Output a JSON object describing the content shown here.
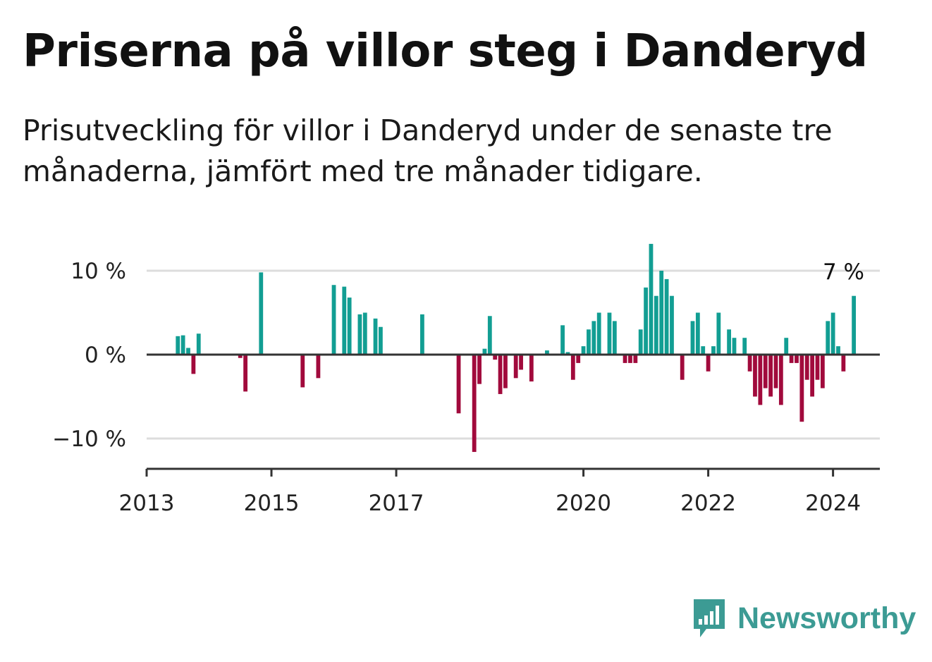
{
  "title": "Priserna på villor steg i Danderyd",
  "subtitle": "Prisutveckling för villor i Danderyd under de senaste tre månaderna, jämfört med tre månader tidigare.",
  "brand": {
    "name": "Newsworthy",
    "icon": "bar-chart-speech-bubble-icon"
  },
  "colors": {
    "positive": "#129e93",
    "negative": "#a10a3c",
    "grid": "#dddddd",
    "axis": "#333333",
    "brand": "#3c9b94"
  },
  "chart_data": {
    "type": "bar",
    "x_unit": "month",
    "ylim": [
      -14,
      13
    ],
    "yticks": [
      {
        "value": 10,
        "label": "10 %"
      },
      {
        "value": 0,
        "label": "0 %"
      },
      {
        "value": -10,
        "label": "−10 %"
      }
    ],
    "xticks": [
      "2013",
      "2015",
      "2017",
      "2020",
      "2022",
      "2024"
    ],
    "xlim": [
      "2013-01",
      "2024-10"
    ],
    "grid": true,
    "annotation": {
      "date": "2024-03",
      "text": "7 %"
    },
    "series": [
      {
        "points": [
          [
            "2013-07",
            2.2
          ],
          [
            "2013-08",
            2.3
          ],
          [
            "2013-09",
            0.8
          ],
          [
            "2013-10",
            -2.3
          ],
          [
            "2013-11",
            2.5
          ],
          [
            "2014-07",
            -0.4
          ],
          [
            "2014-08",
            -4.4
          ],
          [
            "2014-11",
            9.8
          ],
          [
            "2015-07",
            -3.9
          ],
          [
            "2015-10",
            -2.8
          ],
          [
            "2016-01",
            8.3
          ],
          [
            "2016-03",
            8.1
          ],
          [
            "2016-04",
            6.8
          ],
          [
            "2016-06",
            4.8
          ],
          [
            "2016-07",
            5.0
          ],
          [
            "2016-09",
            4.3
          ],
          [
            "2016-10",
            3.3
          ],
          [
            "2017-06",
            4.8
          ],
          [
            "2018-01",
            -7.0
          ],
          [
            "2018-04",
            -11.6
          ],
          [
            "2018-05",
            -3.5
          ],
          [
            "2018-06",
            0.7
          ],
          [
            "2018-07",
            4.6
          ],
          [
            "2018-08",
            -0.6
          ],
          [
            "2018-09",
            -4.7
          ],
          [
            "2018-10",
            -4.0
          ],
          [
            "2018-12",
            -2.8
          ],
          [
            "2019-01",
            -1.8
          ],
          [
            "2019-03",
            -3.2
          ],
          [
            "2019-06",
            0.5
          ],
          [
            "2019-09",
            3.5
          ],
          [
            "2019-10",
            0.3
          ],
          [
            "2019-11",
            -3.0
          ],
          [
            "2019-12",
            -1.0
          ],
          [
            "2020-01",
            1.0
          ],
          [
            "2020-02",
            3.0
          ],
          [
            "2020-03",
            4.0
          ],
          [
            "2020-04",
            5.0
          ],
          [
            "2020-06",
            5.0
          ],
          [
            "2020-07",
            4.0
          ],
          [
            "2020-09",
            -1.0
          ],
          [
            "2020-10",
            -1.0
          ],
          [
            "2020-11",
            -1.0
          ],
          [
            "2020-12",
            3.0
          ],
          [
            "2021-01",
            8.0
          ],
          [
            "2021-02",
            13.2
          ],
          [
            "2021-03",
            7.0
          ],
          [
            "2021-04",
            10.0
          ],
          [
            "2021-05",
            9.0
          ],
          [
            "2021-06",
            7.0
          ],
          [
            "2021-08",
            -3.0
          ],
          [
            "2021-10",
            4.0
          ],
          [
            "2021-11",
            5.0
          ],
          [
            "2021-12",
            1.0
          ],
          [
            "2022-01",
            -2.0
          ],
          [
            "2022-02",
            1.0
          ],
          [
            "2022-03",
            5.0
          ],
          [
            "2022-05",
            3.0
          ],
          [
            "2022-06",
            2.0
          ],
          [
            "2022-08",
            2.0
          ],
          [
            "2022-09",
            -2.0
          ],
          [
            "2022-10",
            -5.0
          ],
          [
            "2022-11",
            -6.0
          ],
          [
            "2022-12",
            -4.0
          ],
          [
            "2023-01",
            -5.0
          ],
          [
            "2023-02",
            -4.0
          ],
          [
            "2023-03",
            -6.0
          ],
          [
            "2023-04",
            2.0
          ],
          [
            "2023-05",
            -1.0
          ],
          [
            "2023-06",
            -1.0
          ],
          [
            "2023-07",
            -8.0
          ],
          [
            "2023-08",
            -3.0
          ],
          [
            "2023-09",
            -5.0
          ],
          [
            "2023-10",
            -3.0
          ],
          [
            "2023-11",
            -4.0
          ],
          [
            "2023-12",
            4.0
          ],
          [
            "2024-01",
            5.0
          ],
          [
            "2024-02",
            1.0
          ],
          [
            "2024-03",
            -2.0
          ],
          [
            "2024-05",
            7.0
          ]
        ]
      }
    ]
  }
}
